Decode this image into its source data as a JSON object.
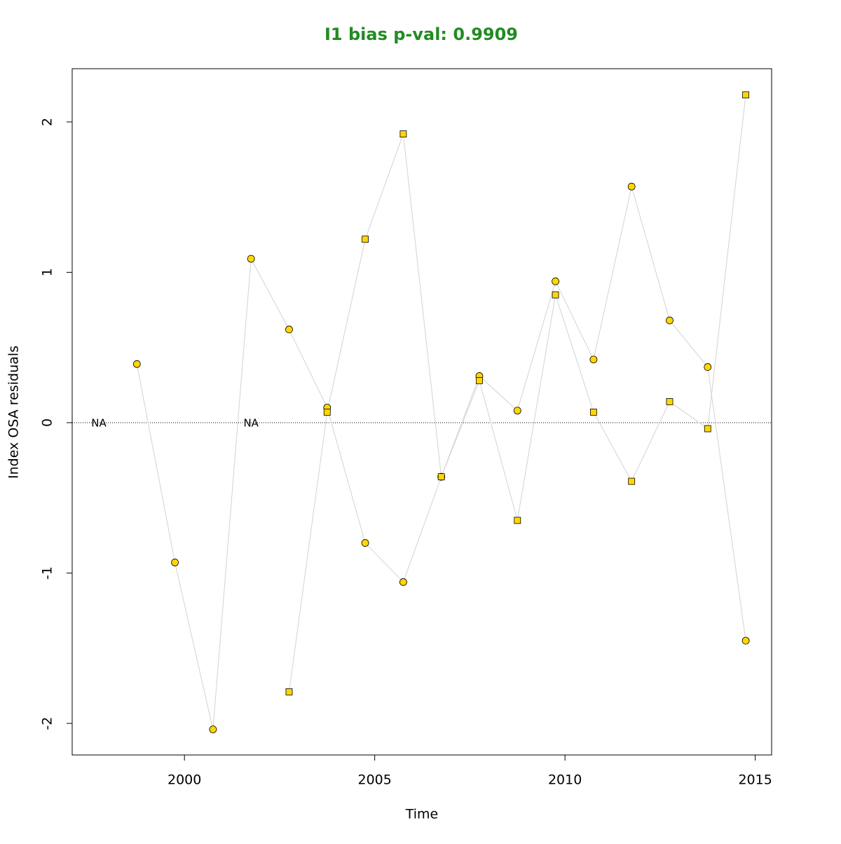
{
  "chart_data": {
    "type": "line",
    "title": "I1 bias p-val: 0.9909",
    "title_color": "#228B22",
    "xlabel": "Time",
    "ylabel": "Index OSA residuals",
    "x": [
      1997.75,
      1998.75,
      1999.75,
      2000.75,
      2001.75,
      2002.75,
      2003.75,
      2004.75,
      2005.75,
      2006.75,
      2007.75,
      2008.75,
      2009.75,
      2010.75,
      2011.75,
      2012.75,
      2013.75,
      2014.75
    ],
    "series": [
      {
        "marker": "circle",
        "color": "#FFD700",
        "line_color": "#D3D3D3",
        "values": [
          null,
          0.39,
          -0.93,
          -2.04,
          1.09,
          0.62,
          0.1,
          -0.8,
          -1.06,
          -0.36,
          0.31,
          0.08,
          0.94,
          0.42,
          1.57,
          0.68,
          0.37,
          -1.45
        ]
      },
      {
        "marker": "square",
        "color": "#FFD700",
        "line_color": "#D3D3D3",
        "values": [
          null,
          null,
          null,
          null,
          null,
          -1.79,
          0.07,
          1.22,
          1.92,
          -0.36,
          0.28,
          -0.65,
          0.85,
          0.07,
          -0.39,
          0.14,
          -0.04,
          2.18
        ]
      }
    ],
    "annotations": [
      {
        "text": "NA",
        "x": 1997.75,
        "y": 0
      },
      {
        "text": "NA",
        "x": 2001.75,
        "y": 0
      }
    ],
    "hline": 0,
    "xlim": [
      1997.05,
      2015.43
    ],
    "ylim": [
      -2.21,
      2.354
    ],
    "xticks": [
      2000,
      2005,
      2010,
      2015
    ],
    "yticks": [
      -2,
      -1,
      0,
      1,
      2
    ]
  }
}
